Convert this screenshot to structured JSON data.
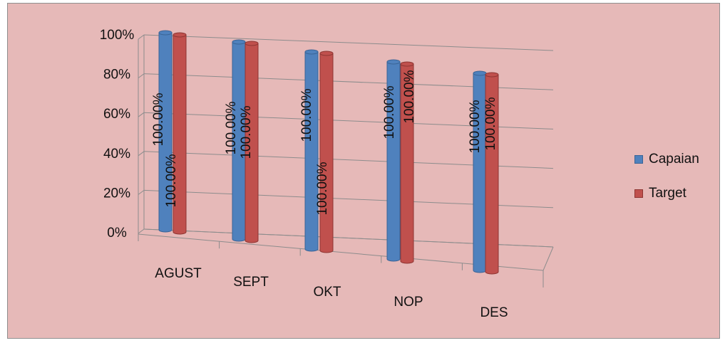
{
  "colors": {
    "background": "#e6b9b8",
    "capaian": "#4f81bd",
    "target": "#c0504d"
  },
  "chart_data": {
    "type": "bar",
    "categories": [
      "AGUST",
      "SEPT",
      "OKT",
      "NOP",
      "DES"
    ],
    "series": [
      {
        "name": "Capaian",
        "values": [
          100,
          100,
          100,
          100,
          100
        ],
        "labels": [
          "100.00%",
          "100.00%",
          "100.00%",
          "100.00%",
          "100.00%"
        ]
      },
      {
        "name": "Target",
        "values": [
          100,
          100,
          100,
          100,
          100
        ],
        "labels": [
          "100.00%",
          "100.00%",
          "100.00%",
          "100.00%",
          "100.00%"
        ]
      }
    ],
    "ylim": [
      0,
      100
    ],
    "ytick_labels": [
      "0%",
      "20%",
      "40%",
      "60%",
      "80%",
      "100%"
    ],
    "grid": true,
    "legend_position": "right"
  }
}
